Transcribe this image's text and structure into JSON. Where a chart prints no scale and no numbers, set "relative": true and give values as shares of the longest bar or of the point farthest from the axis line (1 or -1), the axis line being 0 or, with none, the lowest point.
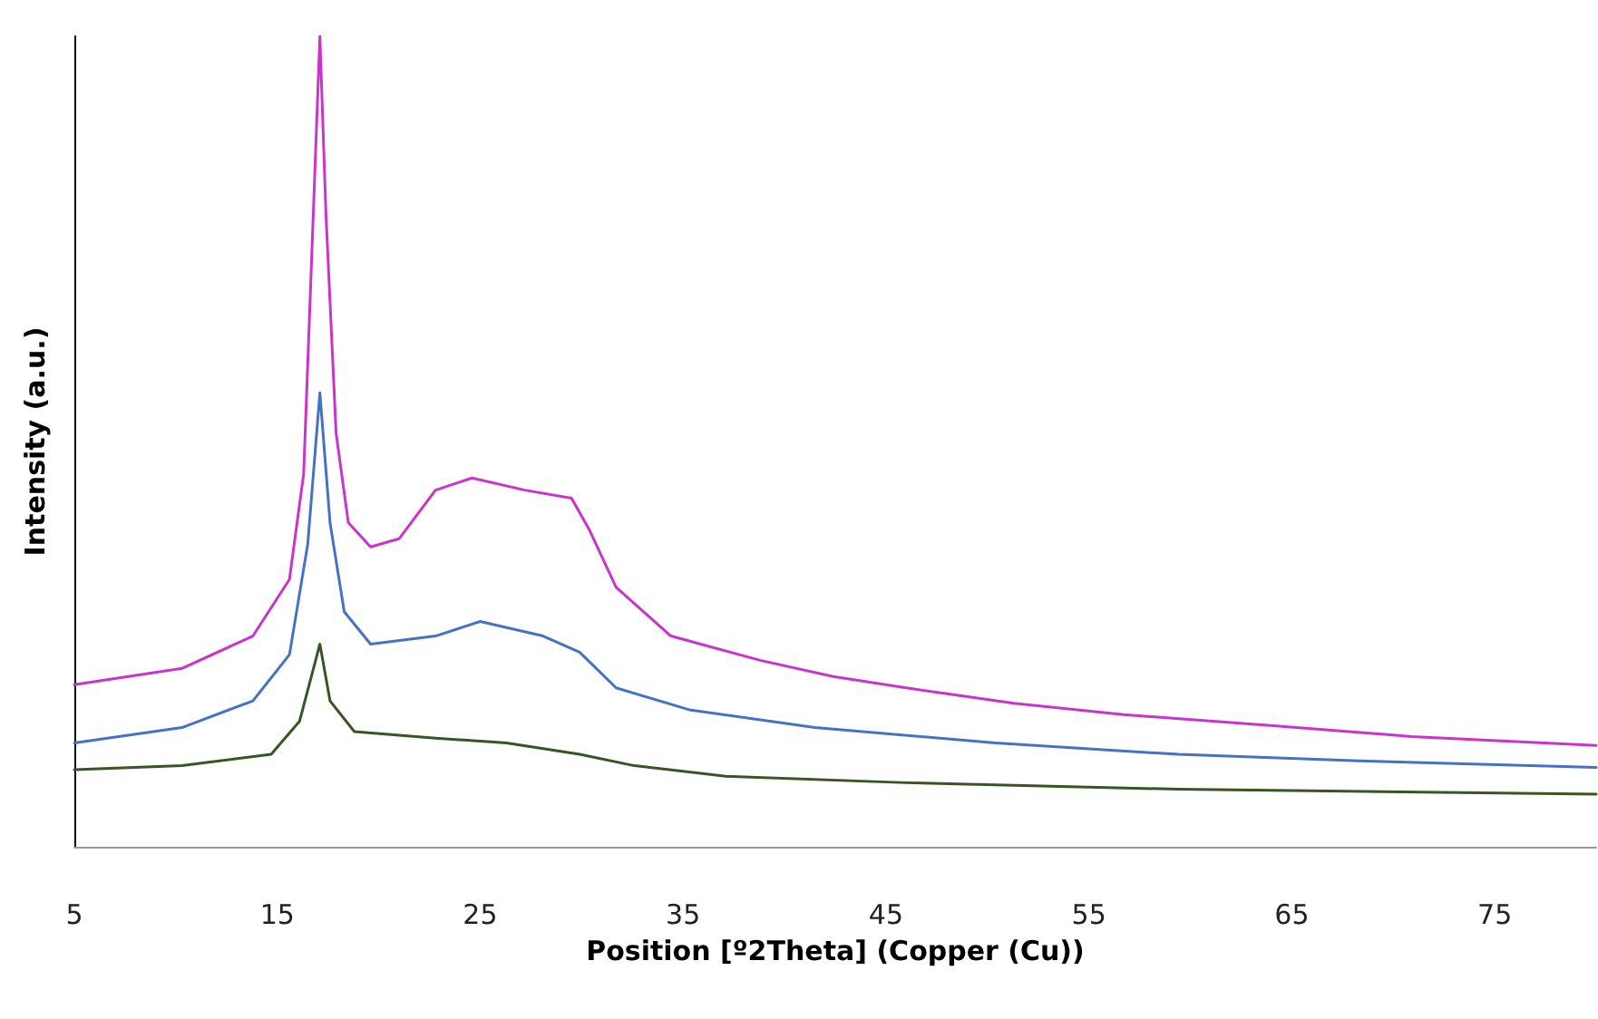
{
  "chart_data": {
    "type": "line",
    "xlabel": "Position [º2Theta] (Copper (Cu))",
    "ylabel": "Intensity (a.u.)",
    "relative": true,
    "xlim": [
      5,
      80
    ],
    "xticks": [
      5,
      15,
      25,
      35,
      45,
      55,
      65,
      75
    ],
    "grid": false,
    "marker": "none",
    "line_style": "solid",
    "series": [
      {
        "color": "#cc33cc",
        "x": [
          5,
          10.3,
          13.8,
          15.6,
          16.3,
          16.7,
          17.1,
          17.4,
          17.9,
          18.5,
          19.6,
          21.0,
          22.8,
          24.6,
          27.2,
          29.5,
          30.4,
          31.7,
          34.4,
          38.8,
          42.4,
          46.0,
          51.3,
          56.7,
          63.8,
          70.9,
          80
        ],
        "values": [
          0.2,
          0.22,
          0.26,
          0.33,
          0.46,
          0.73,
          1,
          0.78,
          0.51,
          0.4,
          0.37,
          0.38,
          0.44,
          0.455,
          0.44,
          0.43,
          0.39,
          0.32,
          0.26,
          0.23,
          0.21,
          0.196,
          0.177,
          0.163,
          0.15,
          0.136,
          0.125
        ]
      },
      {
        "color": "#4472c4",
        "x": [
          5,
          10.3,
          13.8,
          15.6,
          16.5,
          17.1,
          17.6,
          18.3,
          19.6,
          22.8,
          25.0,
          28.1,
          29.9,
          31.7,
          35.3,
          41.5,
          50.4,
          59.4,
          68.3,
          80
        ],
        "values": [
          0.128,
          0.147,
          0.18,
          0.237,
          0.373,
          0.56,
          0.4,
          0.29,
          0.25,
          0.26,
          0.278,
          0.26,
          0.24,
          0.196,
          0.169,
          0.147,
          0.128,
          0.114,
          0.106,
          0.098
        ]
      },
      {
        "color": "#375623",
        "x": [
          5,
          10.3,
          14.7,
          16.1,
          17.1,
          17.6,
          18.8,
          22.8,
          26.3,
          29.9,
          32.6,
          37.1,
          46.0,
          59.4,
          80
        ],
        "values": [
          0.095,
          0.1,
          0.114,
          0.155,
          0.25,
          0.18,
          0.142,
          0.134,
          0.128,
          0.114,
          0.1,
          0.087,
          0.079,
          0.071,
          0.065
        ]
      }
    ]
  }
}
